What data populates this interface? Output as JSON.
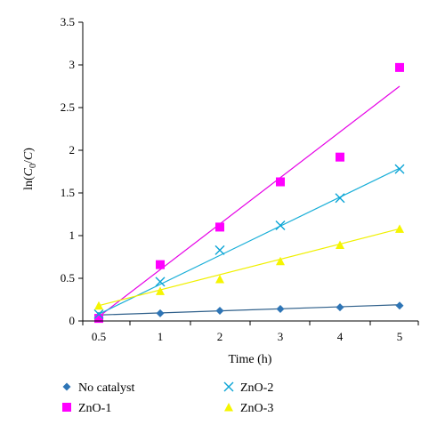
{
  "chart_data": {
    "type": "scatter",
    "xlabel": "Time (h)",
    "ylabel_parts": [
      "ln(",
      "C",
      "0",
      "/",
      "C",
      ")"
    ],
    "ylim": [
      0,
      3.5
    ],
    "y_ticks": [
      "0",
      "0.5",
      "1",
      "1.5",
      "2",
      "2.5",
      "3",
      "3.5"
    ],
    "x_ticks": [
      "0.5",
      "1",
      "2",
      "3",
      "4",
      "5"
    ],
    "legend_position": "bottom",
    "series": [
      {
        "name": "No catalyst",
        "marker": "diamond",
        "color": "#2E75B6",
        "x": [
          0.5,
          1,
          2,
          3,
          4,
          5
        ],
        "y": [
          0.06,
          0.09,
          0.12,
          0.14,
          0.16,
          0.18
        ],
        "trendline": [
          [
            0.5,
            0.07
          ],
          [
            5,
            0.19
          ]
        ]
      },
      {
        "name": "ZnO-1",
        "marker": "square",
        "color": "#FF00FF",
        "x": [
          0.5,
          1,
          2,
          3,
          4,
          5
        ],
        "y": [
          0.03,
          0.66,
          1.1,
          1.63,
          1.92,
          2.97
        ],
        "trendline": [
          [
            0.5,
            0.05
          ],
          [
            5,
            2.75
          ]
        ]
      },
      {
        "name": "ZnO-2",
        "marker": "x",
        "color": "#0DA5D6",
        "x": [
          0.5,
          1,
          2,
          3,
          4,
          5
        ],
        "y": [
          0.08,
          0.46,
          0.83,
          1.12,
          1.44,
          1.78
        ],
        "trendline": [
          [
            0.5,
            0.08
          ],
          [
            5,
            1.79
          ]
        ]
      },
      {
        "name": "ZnO-3",
        "marker": "triangle",
        "color": "#F5F500",
        "x": [
          0.5,
          1,
          2,
          3,
          4,
          5
        ],
        "y": [
          0.18,
          0.35,
          0.49,
          0.7,
          0.89,
          1.08
        ],
        "trendline": [
          [
            0.5,
            0.18
          ],
          [
            5,
            1.08
          ]
        ]
      }
    ]
  }
}
